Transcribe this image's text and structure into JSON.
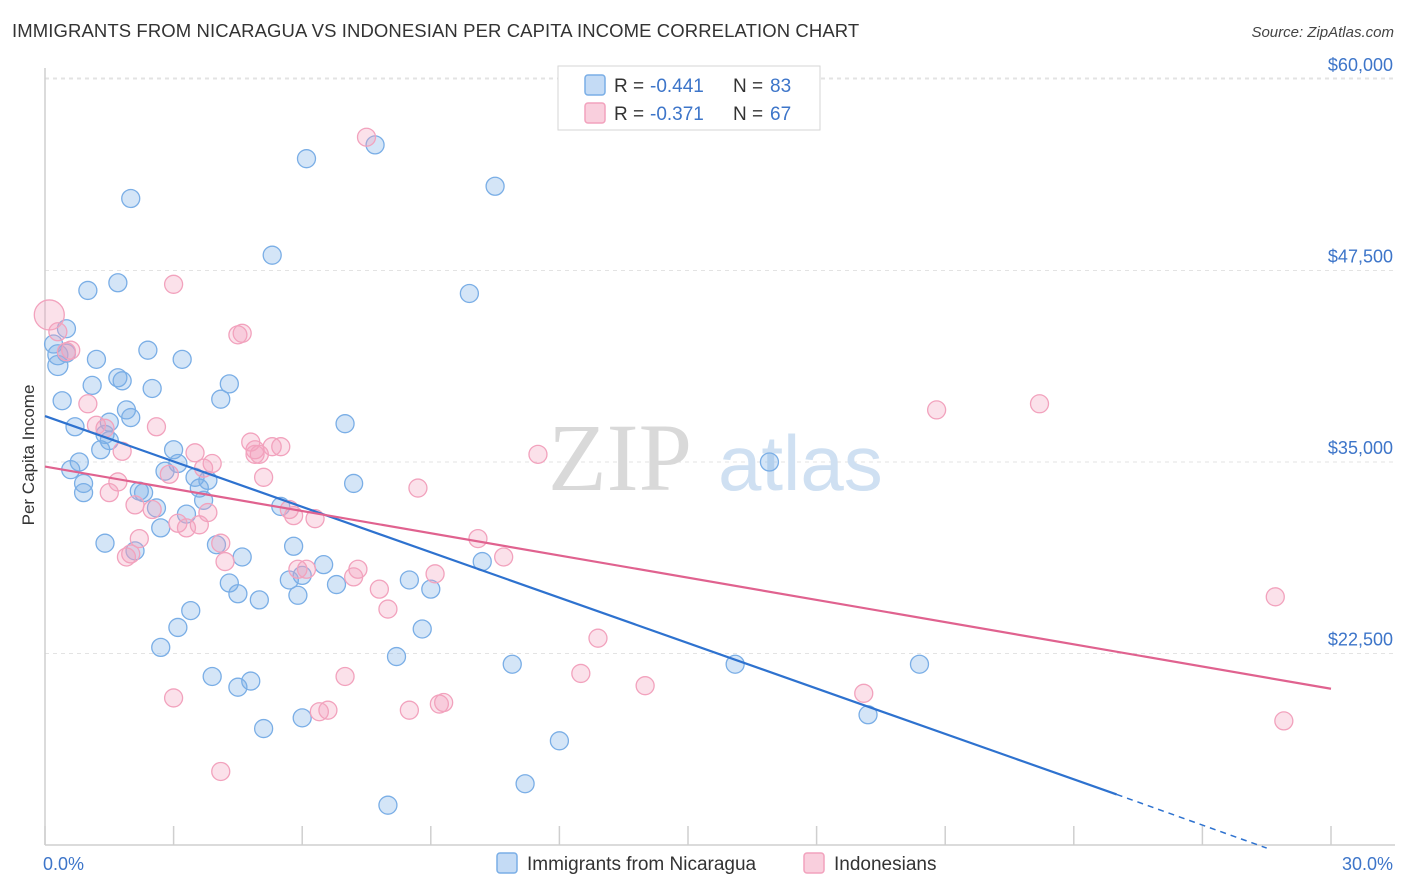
{
  "title": "IMMIGRANTS FROM NICARAGUA VS INDONESIAN PER CAPITA INCOME CORRELATION CHART",
  "source": "Source: ZipAtlas.com",
  "watermark": {
    "zip": "ZIP",
    "atlas": "atlas"
  },
  "chart_data": {
    "type": "scatter",
    "title": "IMMIGRANTS FROM NICARAGUA VS INDONESIAN PER CAPITA INCOME CORRELATION CHART",
    "xlabel": "",
    "ylabel": "Per Capita Income",
    "xlim": [
      0,
      30
    ],
    "ylim": [
      9000,
      62000
    ],
    "x_tick_labels": [
      "0.0%",
      "30.0%"
    ],
    "y_ticks": [
      22500,
      35000,
      47500,
      60000
    ],
    "y_tick_labels": [
      "$22,500",
      "$35,000",
      "$47,500",
      "$60,000"
    ],
    "grid": true,
    "legend_placement": "top-center",
    "stats": [
      {
        "series": "Immigrants from Nicaragua",
        "r_label": "R =",
        "r_value": "-0.441",
        "n_label": "N =",
        "n_value": "83"
      },
      {
        "series": "Indonesians",
        "r_label": "R =",
        "r_value": "-0.371",
        "n_label": "N =",
        "n_value": "67"
      }
    ],
    "series": [
      {
        "name": "Immigrants from Nicaragua",
        "color": "#7aaee6",
        "line_color": "#2e72cf",
        "trend": {
          "x0": 0,
          "y0": 38000,
          "x1": 25,
          "y1": 13300,
          "dash_to_x": 28.5,
          "dash_to_y": 9800
        },
        "points": [
          [
            0.3,
            42000
          ],
          [
            0.3,
            41300
          ],
          [
            0.5,
            43700
          ],
          [
            0.5,
            42100
          ],
          [
            0.4,
            39000
          ],
          [
            0.6,
            34500
          ],
          [
            0.7,
            37300
          ],
          [
            0.8,
            35000
          ],
          [
            0.9,
            33000
          ],
          [
            0.9,
            33600
          ],
          [
            1.0,
            46200
          ],
          [
            1.1,
            40000
          ],
          [
            1.2,
            41700
          ],
          [
            1.3,
            35800
          ],
          [
            1.4,
            36800
          ],
          [
            1.5,
            37600
          ],
          [
            1.4,
            29700
          ],
          [
            1.7,
            40500
          ],
          [
            1.8,
            40300
          ],
          [
            1.7,
            46700
          ],
          [
            1.9,
            38400
          ],
          [
            2.0,
            37900
          ],
          [
            2.0,
            52200
          ],
          [
            2.1,
            29200
          ],
          [
            2.2,
            33100
          ],
          [
            2.4,
            42300
          ],
          [
            2.5,
            39800
          ],
          [
            2.6,
            32000
          ],
          [
            2.7,
            30700
          ],
          [
            2.8,
            34400
          ],
          [
            3.0,
            35800
          ],
          [
            3.1,
            34900
          ],
          [
            3.2,
            41700
          ],
          [
            3.3,
            31600
          ],
          [
            3.4,
            25300
          ],
          [
            3.5,
            34000
          ],
          [
            3.6,
            33300
          ],
          [
            3.7,
            32500
          ],
          [
            3.8,
            33800
          ],
          [
            3.9,
            21000
          ],
          [
            4.0,
            29600
          ],
          [
            4.1,
            39100
          ],
          [
            4.3,
            40100
          ],
          [
            4.3,
            27100
          ],
          [
            4.5,
            26400
          ],
          [
            4.5,
            20300
          ],
          [
            4.6,
            28800
          ],
          [
            4.8,
            20700
          ],
          [
            5.0,
            26000
          ],
          [
            5.1,
            17600
          ],
          [
            5.3,
            48500
          ],
          [
            5.5,
            32100
          ],
          [
            5.7,
            27300
          ],
          [
            5.8,
            29500
          ],
          [
            5.9,
            26300
          ],
          [
            6.0,
            27600
          ],
          [
            6.0,
            18300
          ],
          [
            6.5,
            28300
          ],
          [
            6.8,
            27000
          ],
          [
            7.0,
            37500
          ],
          [
            7.2,
            33600
          ],
          [
            7.7,
            55700
          ],
          [
            8.0,
            12600
          ],
          [
            8.2,
            22300
          ],
          [
            8.5,
            27300
          ],
          [
            8.8,
            24100
          ],
          [
            9.0,
            26700
          ],
          [
            9.9,
            46000
          ],
          [
            10.2,
            28500
          ],
          [
            10.5,
            53000
          ],
          [
            10.9,
            21800
          ],
          [
            11.2,
            14000
          ],
          [
            12.0,
            16800
          ],
          [
            16.1,
            21800
          ],
          [
            16.9,
            35000
          ],
          [
            19.2,
            18500
          ],
          [
            20.4,
            21800
          ],
          [
            0.2,
            42700
          ],
          [
            1.5,
            36400
          ],
          [
            2.3,
            33000
          ],
          [
            6.1,
            54800
          ],
          [
            3.1,
            24200
          ],
          [
            2.7,
            22900
          ]
        ]
      },
      {
        "name": "Indonesians",
        "color": "#f2a2bd",
        "line_color": "#e0628f",
        "trend": {
          "x0": 0,
          "y0": 34700,
          "x1": 30,
          "y1": 20200
        },
        "points": [
          [
            0.1,
            44600
          ],
          [
            0.3,
            43500
          ],
          [
            0.5,
            42200
          ],
          [
            0.6,
            42300
          ],
          [
            1.0,
            38800
          ],
          [
            1.2,
            37400
          ],
          [
            1.4,
            37200
          ],
          [
            1.5,
            33000
          ],
          [
            1.7,
            33700
          ],
          [
            1.8,
            35700
          ],
          [
            2.0,
            29000
          ],
          [
            2.2,
            30000
          ],
          [
            2.5,
            31900
          ],
          [
            2.6,
            37300
          ],
          [
            2.9,
            34200
          ],
          [
            3.0,
            46600
          ],
          [
            3.0,
            19600
          ],
          [
            3.3,
            30700
          ],
          [
            3.5,
            35600
          ],
          [
            3.6,
            30900
          ],
          [
            3.7,
            34600
          ],
          [
            3.8,
            31700
          ],
          [
            3.9,
            34900
          ],
          [
            4.1,
            29700
          ],
          [
            4.1,
            14800
          ],
          [
            4.2,
            28500
          ],
          [
            4.5,
            43300
          ],
          [
            4.6,
            43400
          ],
          [
            4.8,
            36300
          ],
          [
            4.9,
            35800
          ],
          [
            5.0,
            35500
          ],
          [
            5.1,
            34000
          ],
          [
            5.3,
            36000
          ],
          [
            5.5,
            36000
          ],
          [
            5.7,
            31900
          ],
          [
            5.9,
            28000
          ],
          [
            6.1,
            28000
          ],
          [
            6.3,
            31300
          ],
          [
            6.4,
            18700
          ],
          [
            6.6,
            18800
          ],
          [
            7.0,
            21000
          ],
          [
            7.2,
            27500
          ],
          [
            7.3,
            28000
          ],
          [
            7.5,
            56200
          ],
          [
            7.8,
            26700
          ],
          [
            8.0,
            25400
          ],
          [
            8.5,
            18800
          ],
          [
            8.7,
            33300
          ],
          [
            9.1,
            27700
          ],
          [
            9.2,
            19200
          ],
          [
            9.3,
            19300
          ],
          [
            10.1,
            30000
          ],
          [
            10.7,
            28800
          ],
          [
            11.5,
            35500
          ],
          [
            12.5,
            21200
          ],
          [
            12.9,
            23500
          ],
          [
            14.0,
            20400
          ],
          [
            19.1,
            19900
          ],
          [
            20.8,
            38400
          ],
          [
            23.2,
            38800
          ],
          [
            28.7,
            26200
          ],
          [
            28.9,
            18100
          ],
          [
            1.9,
            28800
          ],
          [
            3.1,
            31000
          ],
          [
            5.8,
            31500
          ],
          [
            4.9,
            35500
          ],
          [
            2.1,
            32200
          ]
        ]
      }
    ]
  },
  "bottom_legend": [
    {
      "label": "Immigrants from Nicaragua",
      "color": "#7aaee6"
    },
    {
      "label": "Indonesians",
      "color": "#f2a2bd"
    }
  ]
}
